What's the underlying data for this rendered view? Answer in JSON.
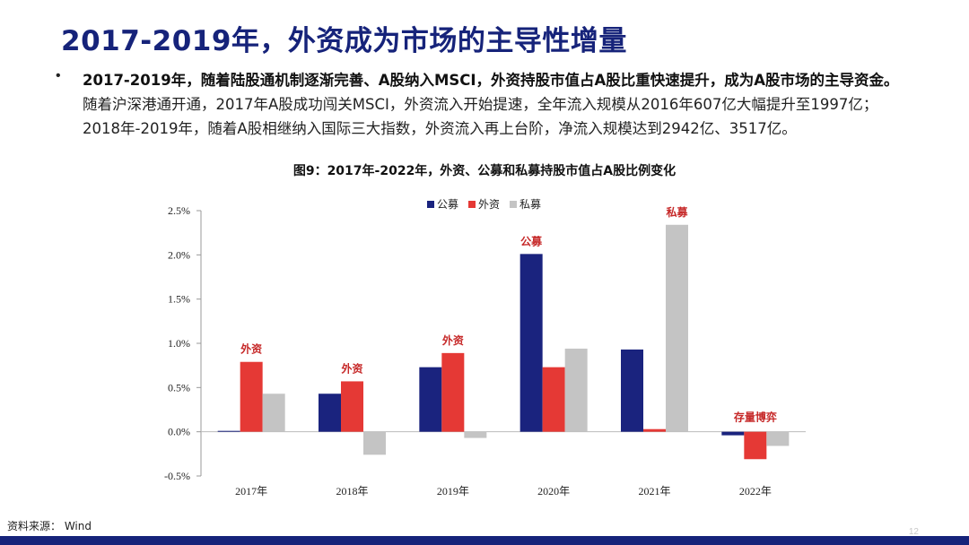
{
  "slide": {
    "title": "2017-2019年，外资成为市场的主导性增量",
    "bullet_marker": "•",
    "bullet_bold": "2017-2019年，随着陆股通机制逐渐完善、A股纳入MSCI，外资持股市值占A股比重快速提升，成为A股市场的主导资金。",
    "bullet_normal": "随着沪深港通开通，2017年A股成功闯关MSCI，外资流入开始提速，全年流入规模从2016年607亿大幅提升至1997亿；2018年-2019年，随着A股相继纳入国际三大指数，外资流入再上台阶，净流入规模达到2942亿、3517亿。",
    "figure_caption": "图9：2017年-2022年，外资、公募和私募持股市值占A股比例变化",
    "source": "资料来源： Wind",
    "page_number": "12"
  },
  "colors": {
    "title": "#16237a",
    "公募": "#1a237e",
    "外资": "#e53935",
    "私募": "#c4c4c4",
    "annotation": "#c62828",
    "footer": "#16237a"
  },
  "chart_data": {
    "type": "bar",
    "title": "图9：2017年-2022年，外资、公募和私募持股市值占A股比例变化",
    "categories": [
      "2017年",
      "2018年",
      "2019年",
      "2020年",
      "2021年",
      "2022年"
    ],
    "series": [
      {
        "name": "公募",
        "values": [
          0.01,
          0.43,
          0.73,
          2.01,
          0.93,
          -0.04
        ]
      },
      {
        "name": "外资",
        "values": [
          0.79,
          0.57,
          0.89,
          0.73,
          0.03,
          -0.31
        ]
      },
      {
        "name": "私募",
        "values": [
          0.43,
          -0.26,
          -0.07,
          0.94,
          2.34,
          -0.16
        ]
      }
    ],
    "ylim": [
      -0.5,
      2.5
    ],
    "yticks": [
      2.5,
      2.0,
      1.5,
      1.0,
      0.5,
      0.0,
      -0.5
    ],
    "ytick_labels": [
      "2.5%",
      "2.0%",
      "1.5%",
      "1.0%",
      "0.5%",
      "0.0%",
      "-0.5%"
    ],
    "xlabel": "",
    "ylabel": "",
    "legend_position": "top-center",
    "annotations": [
      {
        "text": "外资",
        "category_index": 0,
        "series": "外资"
      },
      {
        "text": "外资",
        "category_index": 1,
        "series": "外资"
      },
      {
        "text": "外资",
        "category_index": 2,
        "series": "外资"
      },
      {
        "text": "公募",
        "category_index": 3,
        "series": "公募"
      },
      {
        "text": "私募",
        "category_index": 4,
        "series": "私募"
      },
      {
        "text": "存量博弈",
        "category_index": 5,
        "series": "外资"
      }
    ]
  }
}
